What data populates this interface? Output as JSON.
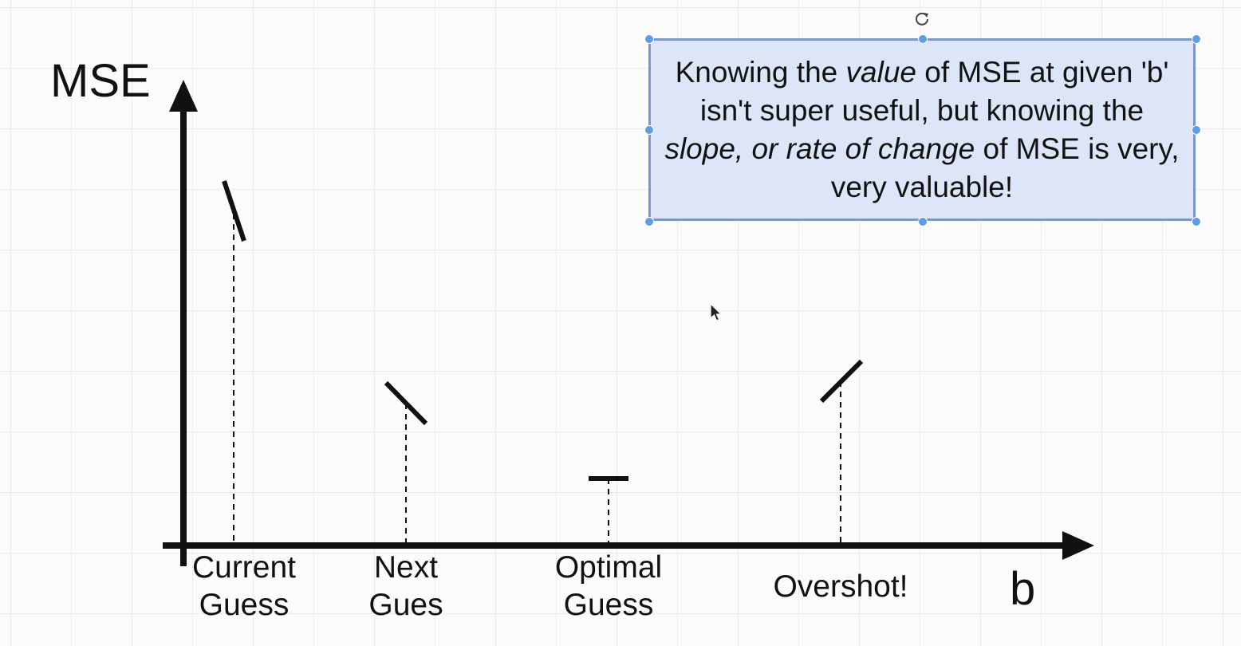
{
  "axes": {
    "y_label": "MSE",
    "x_label": "b"
  },
  "guesses": [
    {
      "id": "current",
      "line1": "Current",
      "line2": "Guess",
      "slope_direction": "steep-negative"
    },
    {
      "id": "next",
      "line1": "Next",
      "line2": "Gues",
      "slope_direction": "negative"
    },
    {
      "id": "optimal",
      "line1": "Optimal",
      "line2": "Guess",
      "slope_direction": "zero"
    },
    {
      "id": "overshot",
      "line1": "Overshot!",
      "line2": "",
      "slope_direction": "positive"
    }
  ],
  "note": {
    "p1": "Knowing the ",
    "p1_em": "value",
    "p2": " of MSE at given 'b' isn't super useful, but knowing the ",
    "p2_em": "slope, or rate of change",
    "p3": " of MSE is very, very valuable!"
  },
  "colors": {
    "ink": "#111111",
    "note_fill": "#dce6f8",
    "note_border": "#7d98c8",
    "handle": "#5c9ee6",
    "grid": "#ececec"
  },
  "icons": [
    "rotate-icon",
    "cursor-icon"
  ]
}
